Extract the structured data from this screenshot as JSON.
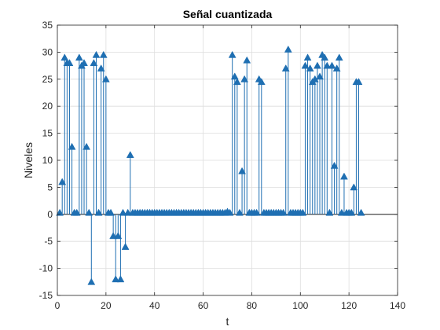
{
  "chart_data": {
    "type": "stem",
    "title": "Señal cuantizada",
    "xlabel": "t",
    "ylabel": "Niveles",
    "xlim": [
      0,
      140
    ],
    "ylim": [
      -15,
      35
    ],
    "xticks": [
      0,
      20,
      40,
      60,
      80,
      100,
      120,
      140
    ],
    "yticks": [
      -15,
      -10,
      -5,
      0,
      5,
      10,
      15,
      20,
      25,
      30,
      35
    ],
    "grid": true,
    "marker": "triangle-up",
    "baseline": 0,
    "colors": {
      "stem": "#1f6fb2",
      "marker": "#1f6fb2",
      "baseline": "#000000",
      "grid": "#dedede",
      "axis": "#262626"
    },
    "x": [
      1,
      2,
      3,
      4,
      5,
      6,
      7,
      8,
      9,
      10,
      11,
      12,
      13,
      14,
      15,
      16,
      17,
      18,
      19,
      20,
      21,
      22,
      23,
      24,
      25,
      26,
      27,
      28,
      29,
      30,
      31,
      32,
      33,
      34,
      35,
      36,
      37,
      38,
      39,
      40,
      41,
      42,
      43,
      44,
      45,
      46,
      47,
      48,
      49,
      50,
      51,
      52,
      53,
      54,
      55,
      56,
      57,
      58,
      59,
      60,
      61,
      62,
      63,
      64,
      65,
      66,
      67,
      68,
      69,
      70,
      71,
      72,
      73,
      74,
      75,
      76,
      77,
      78,
      79,
      80,
      81,
      82,
      83,
      84,
      85,
      86,
      87,
      88,
      89,
      90,
      91,
      92,
      93,
      94,
      95,
      96,
      97,
      98,
      99,
      100,
      101,
      102,
      103,
      104,
      105,
      106,
      107,
      108,
      109,
      110,
      111,
      112,
      113,
      114,
      115,
      116,
      117,
      118,
      119,
      120,
      121,
      122,
      123,
      124,
      125
    ],
    "y": [
      0.3,
      6,
      29,
      28,
      28,
      12.5,
      0.3,
      0.3,
      29,
      27.5,
      28,
      12.5,
      0.3,
      -12.5,
      28,
      29.5,
      0.3,
      27,
      29.5,
      25,
      0.3,
      0.3,
      -4,
      -12,
      -4,
      -12,
      0.3,
      -6,
      0.3,
      11,
      0.3,
      0.3,
      0.3,
      0.3,
      0.3,
      0.3,
      0.3,
      0.3,
      0.3,
      0.3,
      0.3,
      0.3,
      0.3,
      0.3,
      0.3,
      0.3,
      0.3,
      0.3,
      0.3,
      0.3,
      0.3,
      0.3,
      0.3,
      0.3,
      0.3,
      0.3,
      0.3,
      0.3,
      0.3,
      0.3,
      0.3,
      0.3,
      0.3,
      0.3,
      0.3,
      0.3,
      0.3,
      0.3,
      0.3,
      0.5,
      0.3,
      29.5,
      25.5,
      24.5,
      0.3,
      8,
      25,
      28.5,
      0.3,
      0.3,
      0.3,
      0.3,
      25,
      24.5,
      0.3,
      0.3,
      0.3,
      0.3,
      0.3,
      0.3,
      0.3,
      0.3,
      0.3,
      27,
      30.5,
      0.3,
      0.3,
      0.3,
      0.3,
      0.3,
      0.3,
      27.5,
      29,
      27,
      24.5,
      25,
      27.5,
      25.5,
      29.5,
      29,
      27.5,
      0.3,
      27.5,
      9,
      27,
      29,
      0.3,
      7,
      0.3,
      0.3,
      0.3,
      5,
      24.5,
      24.5,
      0.3
    ]
  }
}
